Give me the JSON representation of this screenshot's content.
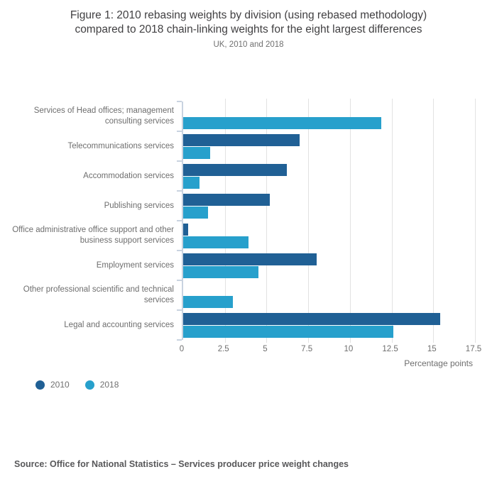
{
  "header": {
    "title": "Figure 1: 2010 rebasing weights by division (using rebased methodology) compared to 2018 chain-linking weights for the eight largest differences",
    "subtitle": "UK, 2010 and 2018"
  },
  "chart_data": {
    "type": "bar",
    "orientation": "horizontal",
    "categories": [
      "Services of Head offices; management consulting services",
      "Telecommunications services",
      "Accommodation services",
      "Publishing services",
      "Office administrative office support and other business support services",
      "Employment services",
      "Other professional scientific and technical services",
      "Legal and accounting services"
    ],
    "series": [
      {
        "name": "2010",
        "color": "#206095",
        "values": [
          0,
          7.0,
          6.2,
          5.2,
          0.3,
          8.0,
          0,
          15.4
        ]
      },
      {
        "name": "2018",
        "color": "#27A0CC",
        "values": [
          11.9,
          1.6,
          1.0,
          1.5,
          3.9,
          4.5,
          3.0,
          12.6
        ]
      }
    ],
    "xlabel": "Percentage points",
    "xlim": [
      0,
      17.5
    ],
    "xticks": [
      0,
      2.5,
      5,
      7.5,
      10,
      12.5,
      15,
      17.5
    ],
    "grid": "vertical",
    "legend_position": "bottom-left"
  },
  "legend": {
    "items": [
      {
        "label": "2010"
      },
      {
        "label": "2018"
      }
    ]
  },
  "footer": {
    "source": "Source: Office for National Statistics – Services producer price weight changes"
  },
  "colors": {
    "bar_2010": "#206095",
    "bar_2018": "#27A0CC",
    "axis": "#c9d3e0",
    "gridline": "#e2e2e2",
    "title_text": "#414042",
    "muted_text": "#707070",
    "source_text": "#58585a"
  }
}
